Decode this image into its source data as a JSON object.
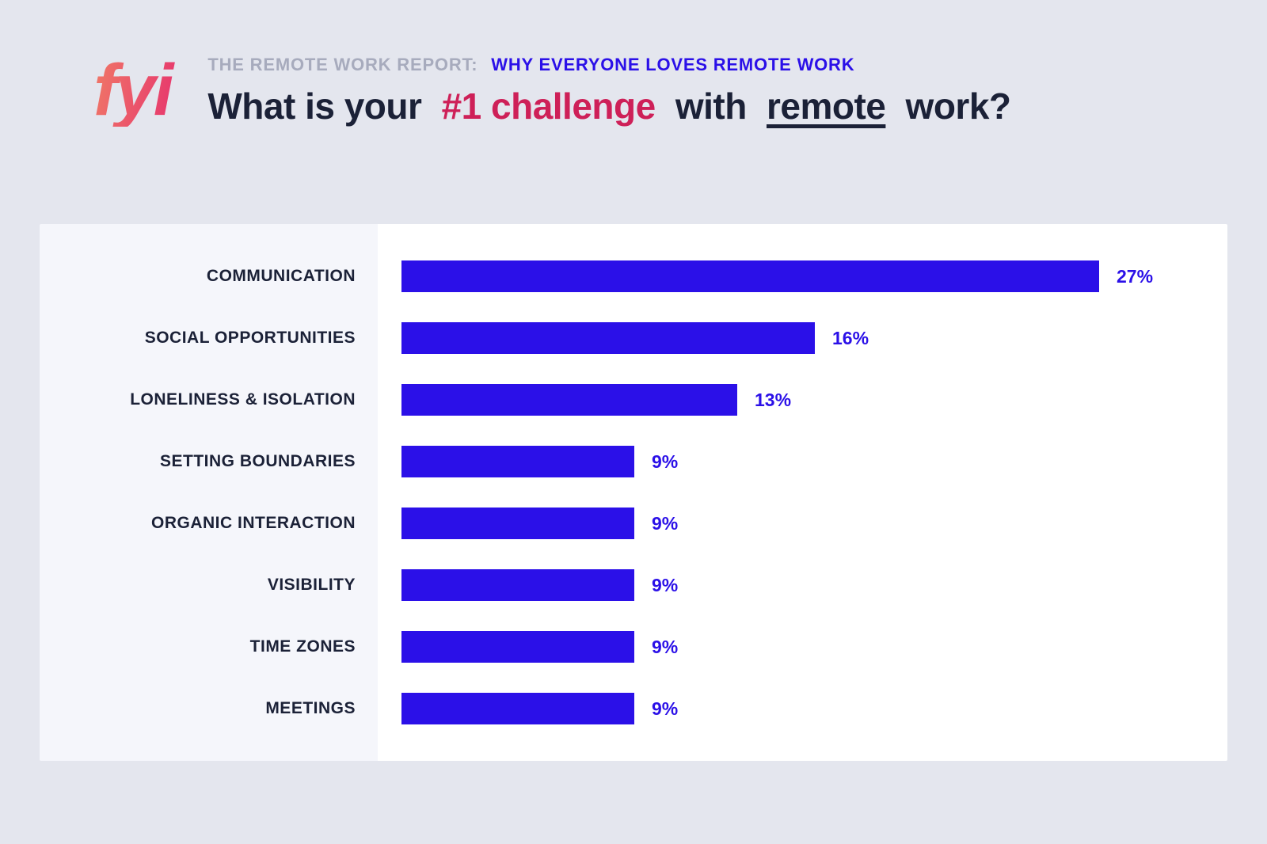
{
  "colors": {
    "bar_blue": "#2b10e8",
    "crimson": "#ce2058",
    "navy": "#1b2137",
    "eyebrow_gray": "#a7abbd",
    "page_bg": "#e4e6ee",
    "panel_bg": "#ffffff",
    "gutter_bg": "#f5f6fb",
    "logo_grad_start": "#ef7268",
    "logo_grad_end": "#e73a6d"
  },
  "header": {
    "logo_text": "fyi",
    "eyebrow_prefix": "THE REMOTE WORK REPORT:",
    "eyebrow_highlight": "WHY EVERYONE LOVES REMOTE WORK",
    "title_part1": "What is your",
    "title_highlight": "#1 challenge",
    "title_part2": "with",
    "title_underlined": "remote",
    "title_part3": "work?"
  },
  "chart_data": {
    "type": "bar",
    "orientation": "horizontal",
    "title": "What is your #1 challenge with remote work?",
    "categories": [
      "COMMUNICATION",
      "SOCIAL OPPORTUNITIES",
      "LONELINESS & ISOLATION",
      "SETTING BOUNDARIES",
      "ORGANIC INTERACTION",
      "VISIBILITY",
      "TIME ZONES",
      "MEETINGS"
    ],
    "values": [
      27,
      16,
      13,
      9,
      9,
      9,
      9,
      9
    ],
    "value_labels": [
      "27%",
      "16%",
      "13%",
      "9%",
      "9%",
      "9%",
      "9%",
      "9%"
    ],
    "xlim": [
      0,
      27
    ],
    "xlabel": "",
    "ylabel": "",
    "grid": false,
    "legend": false,
    "bar_color": "#2b10e8"
  }
}
